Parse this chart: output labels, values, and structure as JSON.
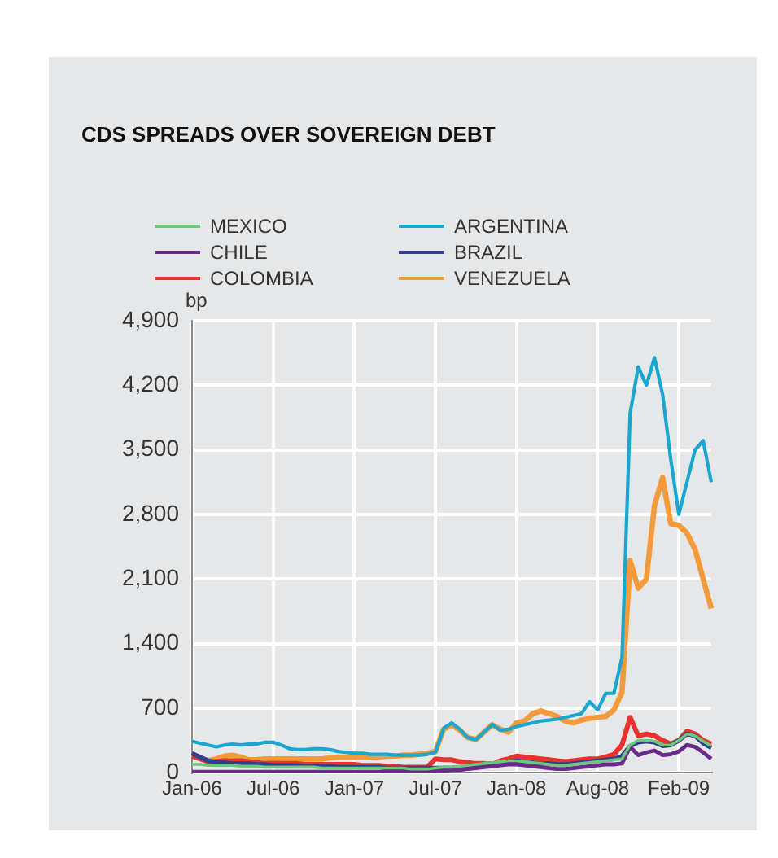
{
  "chart_data": {
    "type": "line",
    "title": "CDS SPREADS OVER SOVEREIGN DEBT",
    "ylabel": "bp",
    "categories": [
      "Jan-06",
      null,
      null,
      null,
      null,
      null,
      null,
      null,
      null,
      null,
      "Jul-06",
      null,
      null,
      null,
      null,
      null,
      null,
      null,
      null,
      null,
      "Jan-07",
      null,
      null,
      null,
      null,
      null,
      null,
      null,
      null,
      null,
      "Jul-07",
      null,
      null,
      null,
      null,
      null,
      null,
      null,
      null,
      null,
      "Jan-08",
      null,
      null,
      null,
      null,
      null,
      null,
      null,
      null,
      null,
      "Aug-08",
      null,
      null,
      null,
      null,
      null,
      null,
      null,
      null,
      null,
      "Feb-09",
      null,
      null,
      null,
      null
    ],
    "ylim": [
      0,
      4900
    ],
    "yticks": [
      {
        "value": 0,
        "label": "0"
      },
      {
        "value": 700,
        "label": "700"
      },
      {
        "value": 1400,
        "label": "1,400"
      },
      {
        "value": 2100,
        "label": "2,100"
      },
      {
        "value": 2800,
        "label": "2,800"
      },
      {
        "value": 3500,
        "label": "3,500"
      },
      {
        "value": 4200,
        "label": "4,200"
      },
      {
        "value": 4900,
        "label": "4,900"
      }
    ],
    "grid": true,
    "legend": "top",
    "marker": "none",
    "line_style": "solid",
    "series": [
      {
        "name": "MEXICO",
        "color": "#6cc77a",
        "values": [
          90,
          90,
          80,
          80,
          80,
          80,
          70,
          70,
          70,
          60,
          60,
          60,
          60,
          60,
          60,
          60,
          50,
          50,
          50,
          50,
          50,
          50,
          50,
          50,
          50,
          50,
          50,
          40,
          40,
          40,
          50,
          60,
          60,
          70,
          80,
          90,
          100,
          110,
          120,
          130,
          130,
          120,
          110,
          100,
          90,
          80,
          80,
          90,
          100,
          110,
          120,
          130,
          140,
          150,
          300,
          350,
          350,
          340,
          300,
          300,
          350,
          420,
          400,
          340,
          290
        ]
      },
      {
        "name": "ARGENTINA",
        "color": "#1aa7cf",
        "values": [
          340,
          320,
          300,
          280,
          300,
          310,
          300,
          310,
          310,
          330,
          330,
          300,
          260,
          250,
          250,
          260,
          260,
          250,
          230,
          220,
          210,
          210,
          200,
          200,
          200,
          190,
          190,
          190,
          190,
          200,
          220,
          480,
          540,
          470,
          380,
          360,
          440,
          520,
          460,
          470,
          500,
          520,
          540,
          560,
          570,
          580,
          600,
          620,
          640,
          770,
          680,
          860,
          860,
          1250,
          3900,
          4400,
          4200,
          4500,
          4100,
          3400,
          2800,
          3150,
          3500,
          3600,
          3150
        ]
      },
      {
        "name": "CHILE",
        "color": "#6a2a8a",
        "values": [
          10,
          10,
          10,
          10,
          10,
          10,
          10,
          10,
          10,
          10,
          10,
          10,
          10,
          10,
          10,
          10,
          10,
          10,
          10,
          10,
          10,
          10,
          10,
          10,
          10,
          10,
          10,
          10,
          10,
          10,
          20,
          20,
          30,
          30,
          40,
          50,
          60,
          70,
          80,
          90,
          90,
          80,
          70,
          60,
          50,
          40,
          40,
          50,
          60,
          70,
          80,
          90,
          90,
          100,
          280,
          190,
          220,
          240,
          190,
          200,
          230,
          300,
          280,
          220,
          150
        ]
      },
      {
        "name": "BRAZIL",
        "color": "#2e3f8f",
        "values": [
          210,
          170,
          130,
          110,
          110,
          100,
          100,
          100,
          90,
          90,
          80,
          80,
          80,
          80,
          70,
          70,
          70,
          70,
          60,
          60,
          60,
          60,
          60,
          60,
          50,
          50,
          50,
          50,
          50,
          50,
          50,
          50,
          50,
          60,
          70,
          80,
          90,
          100,
          110,
          120,
          130,
          120,
          110,
          100,
          100,
          90,
          90,
          100,
          110,
          120,
          130,
          140,
          150,
          180,
          290,
          330,
          340,
          330,
          290,
          300,
          350,
          420,
          400,
          320,
          270
        ]
      },
      {
        "name": "COLOMBIA",
        "color": "#e8322b",
        "values": [
          180,
          150,
          120,
          120,
          130,
          130,
          130,
          120,
          110,
          100,
          100,
          100,
          100,
          100,
          90,
          90,
          90,
          90,
          90,
          90,
          90,
          80,
          80,
          80,
          70,
          70,
          60,
          60,
          60,
          60,
          150,
          140,
          140,
          120,
          110,
          100,
          100,
          90,
          130,
          150,
          180,
          170,
          160,
          150,
          140,
          130,
          120,
          130,
          140,
          150,
          150,
          170,
          200,
          300,
          600,
          400,
          420,
          400,
          350,
          310,
          350,
          450,
          420,
          350,
          310
        ]
      },
      {
        "name": "VENEZUELA",
        "color": "#f39a3a",
        "values": [
          200,
          160,
          130,
          150,
          180,
          190,
          170,
          140,
          140,
          150,
          150,
          150,
          150,
          150,
          150,
          150,
          150,
          160,
          170,
          170,
          170,
          170,
          170,
          170,
          180,
          180,
          190,
          190,
          200,
          210,
          230,
          470,
          520,
          460,
          380,
          360,
          440,
          520,
          470,
          440,
          540,
          560,
          640,
          670,
          640,
          610,
          560,
          540,
          570,
          590,
          600,
          610,
          680,
          870,
          2300,
          2000,
          2100,
          2900,
          3200,
          2700,
          2680,
          2600,
          2420,
          2100,
          1780
        ]
      }
    ]
  }
}
